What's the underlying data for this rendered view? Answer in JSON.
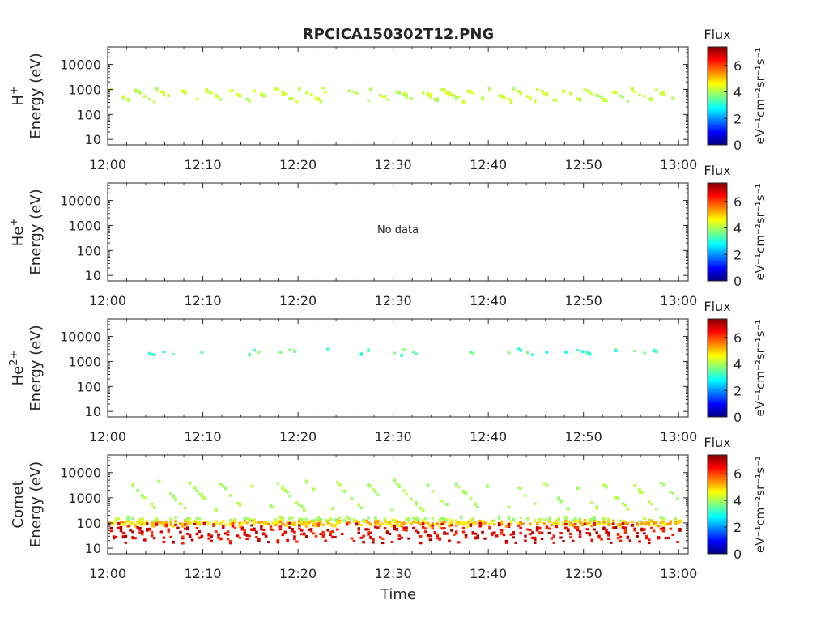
{
  "figure": {
    "title": "RPCICA150302T12.PNG",
    "xlabel": "Time"
  },
  "colorbar": {
    "label": "Flux",
    "unit_label": "eV⁻¹cm⁻²sr⁻¹s⁻¹",
    "ticks": [
      "0",
      "2",
      "4",
      "6"
    ],
    "range": [
      0,
      7.4
    ],
    "colormap": "jet",
    "colors": [
      "#00007f",
      "#0000ff",
      "#007fff",
      "#00ffff",
      "#7fff7f",
      "#ffff00",
      "#ff7f00",
      "#ff0000",
      "#7f0000"
    ]
  },
  "chart_data": [
    {
      "type": "heatmap",
      "species": "H",
      "charge": "+",
      "ylabel": "Energy (eV)",
      "xtick_labels": [
        "12:00",
        "12:10",
        "12:20",
        "12:30",
        "12:40",
        "12:50",
        "13:00"
      ],
      "ytick_labels": [
        "10",
        "100",
        "1000",
        "10000"
      ],
      "xlim_minutes": [
        0,
        61
      ],
      "ylim": [
        6,
        50000
      ],
      "yscale": "log",
      "note": "",
      "tracks": [
        {
          "start_min": 0,
          "end_min": 60,
          "period_min": 2.5,
          "e_high": 1000,
          "e_low": 300,
          "flux": 4.2,
          "flux_spread": 0.3,
          "density": 0.55,
          "width": 0.06
        }
      ]
    },
    {
      "type": "heatmap",
      "species": "He",
      "charge": "+",
      "ylabel": "Energy (eV)",
      "xtick_labels": [
        "12:00",
        "12:10",
        "12:20",
        "12:30",
        "12:40",
        "12:50",
        "13:00"
      ],
      "ytick_labels": [
        "10",
        "100",
        "1000",
        "10000"
      ],
      "xlim_minutes": [
        0,
        61
      ],
      "ylim": [
        6,
        50000
      ],
      "yscale": "log",
      "note": "No data",
      "tracks": []
    },
    {
      "type": "heatmap",
      "species": "He",
      "charge": "2+",
      "ylabel": "Energy (eV)",
      "xtick_labels": [
        "12:00",
        "12:10",
        "12:20",
        "12:30",
        "12:40",
        "12:50",
        "13:00"
      ],
      "ytick_labels": [
        "10",
        "100",
        "1000",
        "10000"
      ],
      "xlim_minutes": [
        0,
        61
      ],
      "ylim": [
        6,
        50000
      ],
      "yscale": "log",
      "note": "",
      "tracks": [
        {
          "start_min": 3,
          "end_min": 58,
          "period_min": 2.0,
          "e_high": 3000,
          "e_low": 1700,
          "flux": 3.3,
          "flux_spread": 0.6,
          "density": 0.12,
          "width": 0.03
        }
      ]
    },
    {
      "type": "heatmap",
      "species": "Comet",
      "charge": "",
      "ylabel": "Energy (eV)",
      "xtick_labels": [
        "12:00",
        "12:10",
        "12:20",
        "12:30",
        "12:40",
        "12:50",
        "13:00"
      ],
      "ytick_labels": [
        "10",
        "100",
        "1000",
        "10000"
      ],
      "xlim_minutes": [
        0,
        61
      ],
      "ylim": [
        6,
        50000
      ],
      "yscale": "log",
      "note": "",
      "tracks": [
        {
          "start_min": 0,
          "end_min": 60,
          "period_min": 1.0,
          "e_high": 110,
          "e_low": 80,
          "flux": 5.0,
          "flux_spread": 0.5,
          "density": 0.8,
          "width": 0.08
        },
        {
          "start_min": 0,
          "end_min": 60,
          "period_min": 1.0,
          "e_high": 70,
          "e_low": 15,
          "flux": 6.6,
          "flux_spread": 0.6,
          "density": 0.95,
          "width": 0.15
        },
        {
          "start_min": 0,
          "end_min": 60,
          "period_min": 1.0,
          "e_high": 160,
          "e_low": 120,
          "flux": 4.0,
          "flux_spread": 0.3,
          "density": 0.35,
          "width": 0.05
        },
        {
          "start_min": 2,
          "end_min": 60,
          "period_min": 3.1,
          "e_high": 5000,
          "e_low": 300,
          "flux": 4.0,
          "flux_spread": 0.2,
          "density": 0.45,
          "width": 0.05
        }
      ]
    }
  ]
}
